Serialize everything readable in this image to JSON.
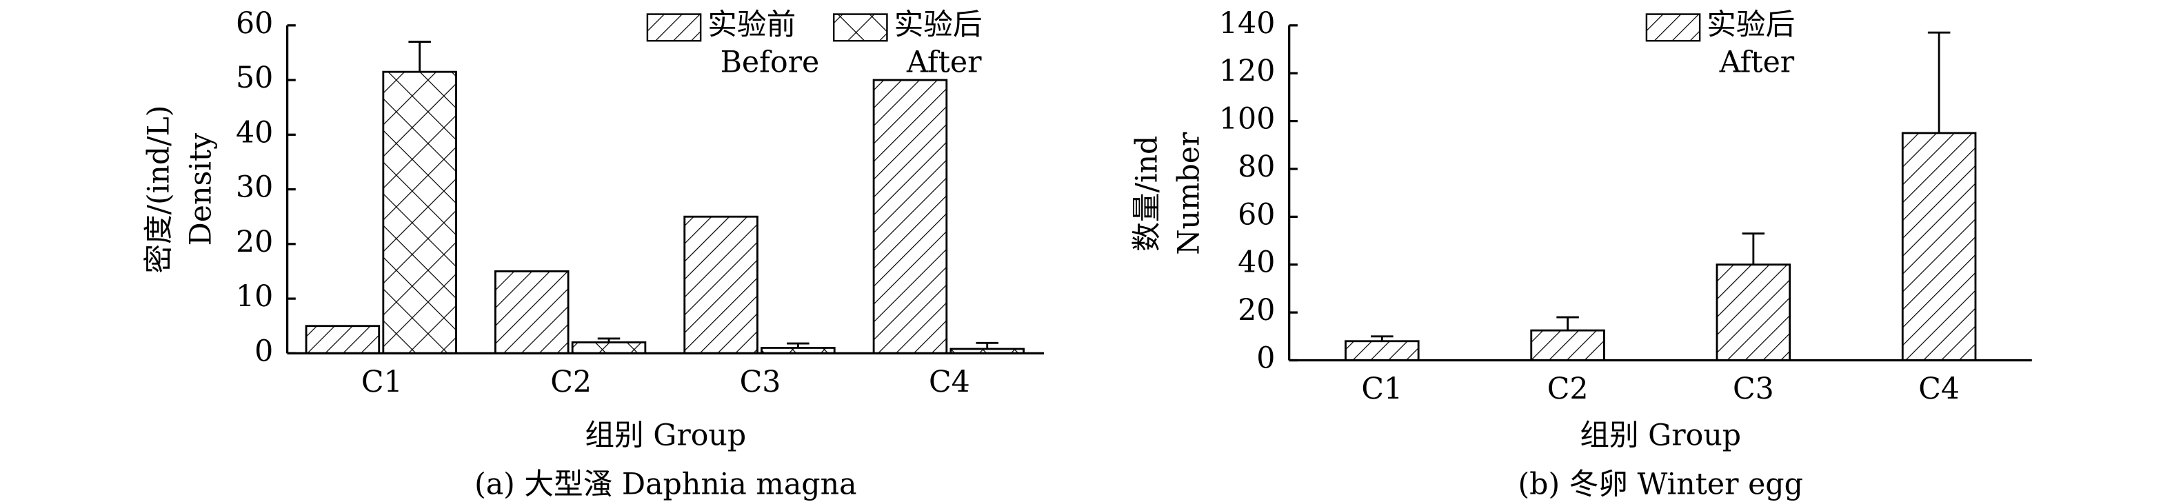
{
  "chart_data": [
    {
      "type": "bar",
      "title": "(a) 大型溞 Daphnia magna",
      "xlabel": "组别 Group",
      "ylabel": [
        "密度/(ind/L)",
        "Density"
      ],
      "categories": [
        "C1",
        "C2",
        "C3",
        "C4"
      ],
      "series": [
        {
          "name": "实验前 Before",
          "color": "#000000",
          "pattern": "hatch",
          "values": [
            5,
            15,
            25,
            50
          ]
        },
        {
          "name": "实验后 After",
          "color": "#000000",
          "pattern": "crosshatch",
          "values": [
            51.5,
            2,
            1,
            0.8
          ],
          "errors": [
            5.5,
            0.7,
            0.8,
            1.1
          ]
        }
      ],
      "ylim": [
        0,
        60
      ],
      "yticks": [
        0,
        10,
        20,
        30,
        40,
        50,
        60
      ]
    },
    {
      "type": "bar",
      "title": "(b) 冬卵 Winter egg",
      "xlabel": "组别 Group",
      "ylabel": [
        "数量/ind",
        "Number"
      ],
      "categories": [
        "C1",
        "C2",
        "C3",
        "C4"
      ],
      "series": [
        {
          "name": "实验后 After",
          "color": "#000000",
          "pattern": "hatch",
          "values": [
            8,
            12.5,
            40,
            95
          ],
          "errors": [
            2,
            5.5,
            13,
            42
          ]
        }
      ],
      "ylim": [
        0,
        140
      ],
      "yticks": [
        0,
        20,
        40,
        60,
        80,
        100,
        120,
        140
      ]
    }
  ]
}
